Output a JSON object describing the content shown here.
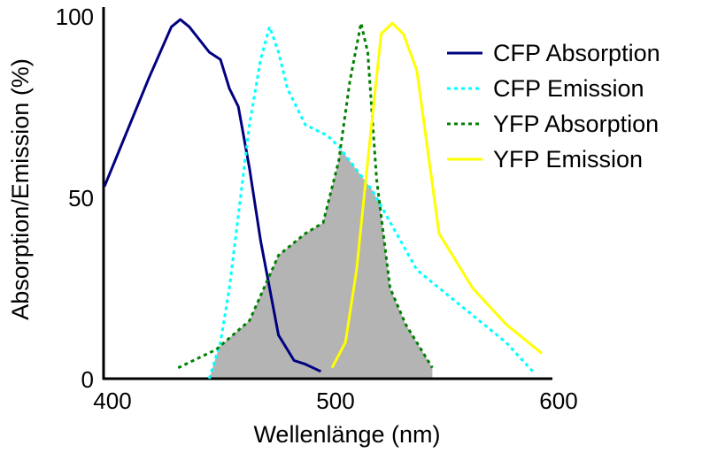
{
  "chart_data": {
    "type": "line",
    "title": "",
    "xlabel": "Wellenlänge (nm)",
    "ylabel": "Absorption/Emission (%)",
    "xlim": [
      400,
      600
    ],
    "ylim": [
      0,
      100
    ],
    "x_ticks": [
      "400",
      "500",
      "600"
    ],
    "y_ticks": [
      "0",
      "50",
      "100"
    ],
    "legend_position": "top-right",
    "grid": false,
    "overlap_fill_color": "#b4b4b4",
    "series": [
      {
        "name": "CFP Absorption",
        "color": "#000080",
        "style": "solid",
        "x": [
          400,
          410,
          420,
          430,
          434,
          438,
          447,
          452,
          456,
          460,
          465,
          470,
          478,
          485,
          490,
          497
        ],
        "y": [
          53,
          68,
          83,
          97,
          99,
          97,
          90,
          88,
          80,
          75,
          58,
          38,
          12,
          5,
          4,
          2
        ]
      },
      {
        "name": "CFP Emission",
        "color": "#00ffff",
        "style": "dotted",
        "x": [
          447,
          452,
          456,
          460,
          465,
          470,
          474,
          478,
          482,
          490,
          500,
          505,
          520,
          540,
          560,
          580,
          592
        ],
        "y": [
          0,
          10,
          25,
          45,
          70,
          88,
          97,
          90,
          80,
          70,
          67,
          64,
          52,
          30,
          20,
          10,
          2
        ]
      },
      {
        "name": "YFP Absorption",
        "color": "#008000",
        "style": "dotted",
        "x": [
          433,
          450,
          465,
          478,
          490,
          498,
          505,
          510,
          515,
          518,
          522,
          528,
          535,
          547
        ],
        "y": [
          3,
          8,
          16,
          34,
          40,
          43,
          60,
          82,
          98,
          90,
          55,
          25,
          15,
          3
        ]
      },
      {
        "name": "YFP Emission",
        "color": "#ffff00",
        "style": "solid",
        "x": [
          502,
          508,
          513,
          518,
          524,
          529,
          534,
          540,
          550,
          565,
          580,
          596
        ],
        "y": [
          3,
          10,
          30,
          60,
          95,
          98,
          95,
          85,
          40,
          25,
          15,
          7
        ]
      }
    ]
  }
}
